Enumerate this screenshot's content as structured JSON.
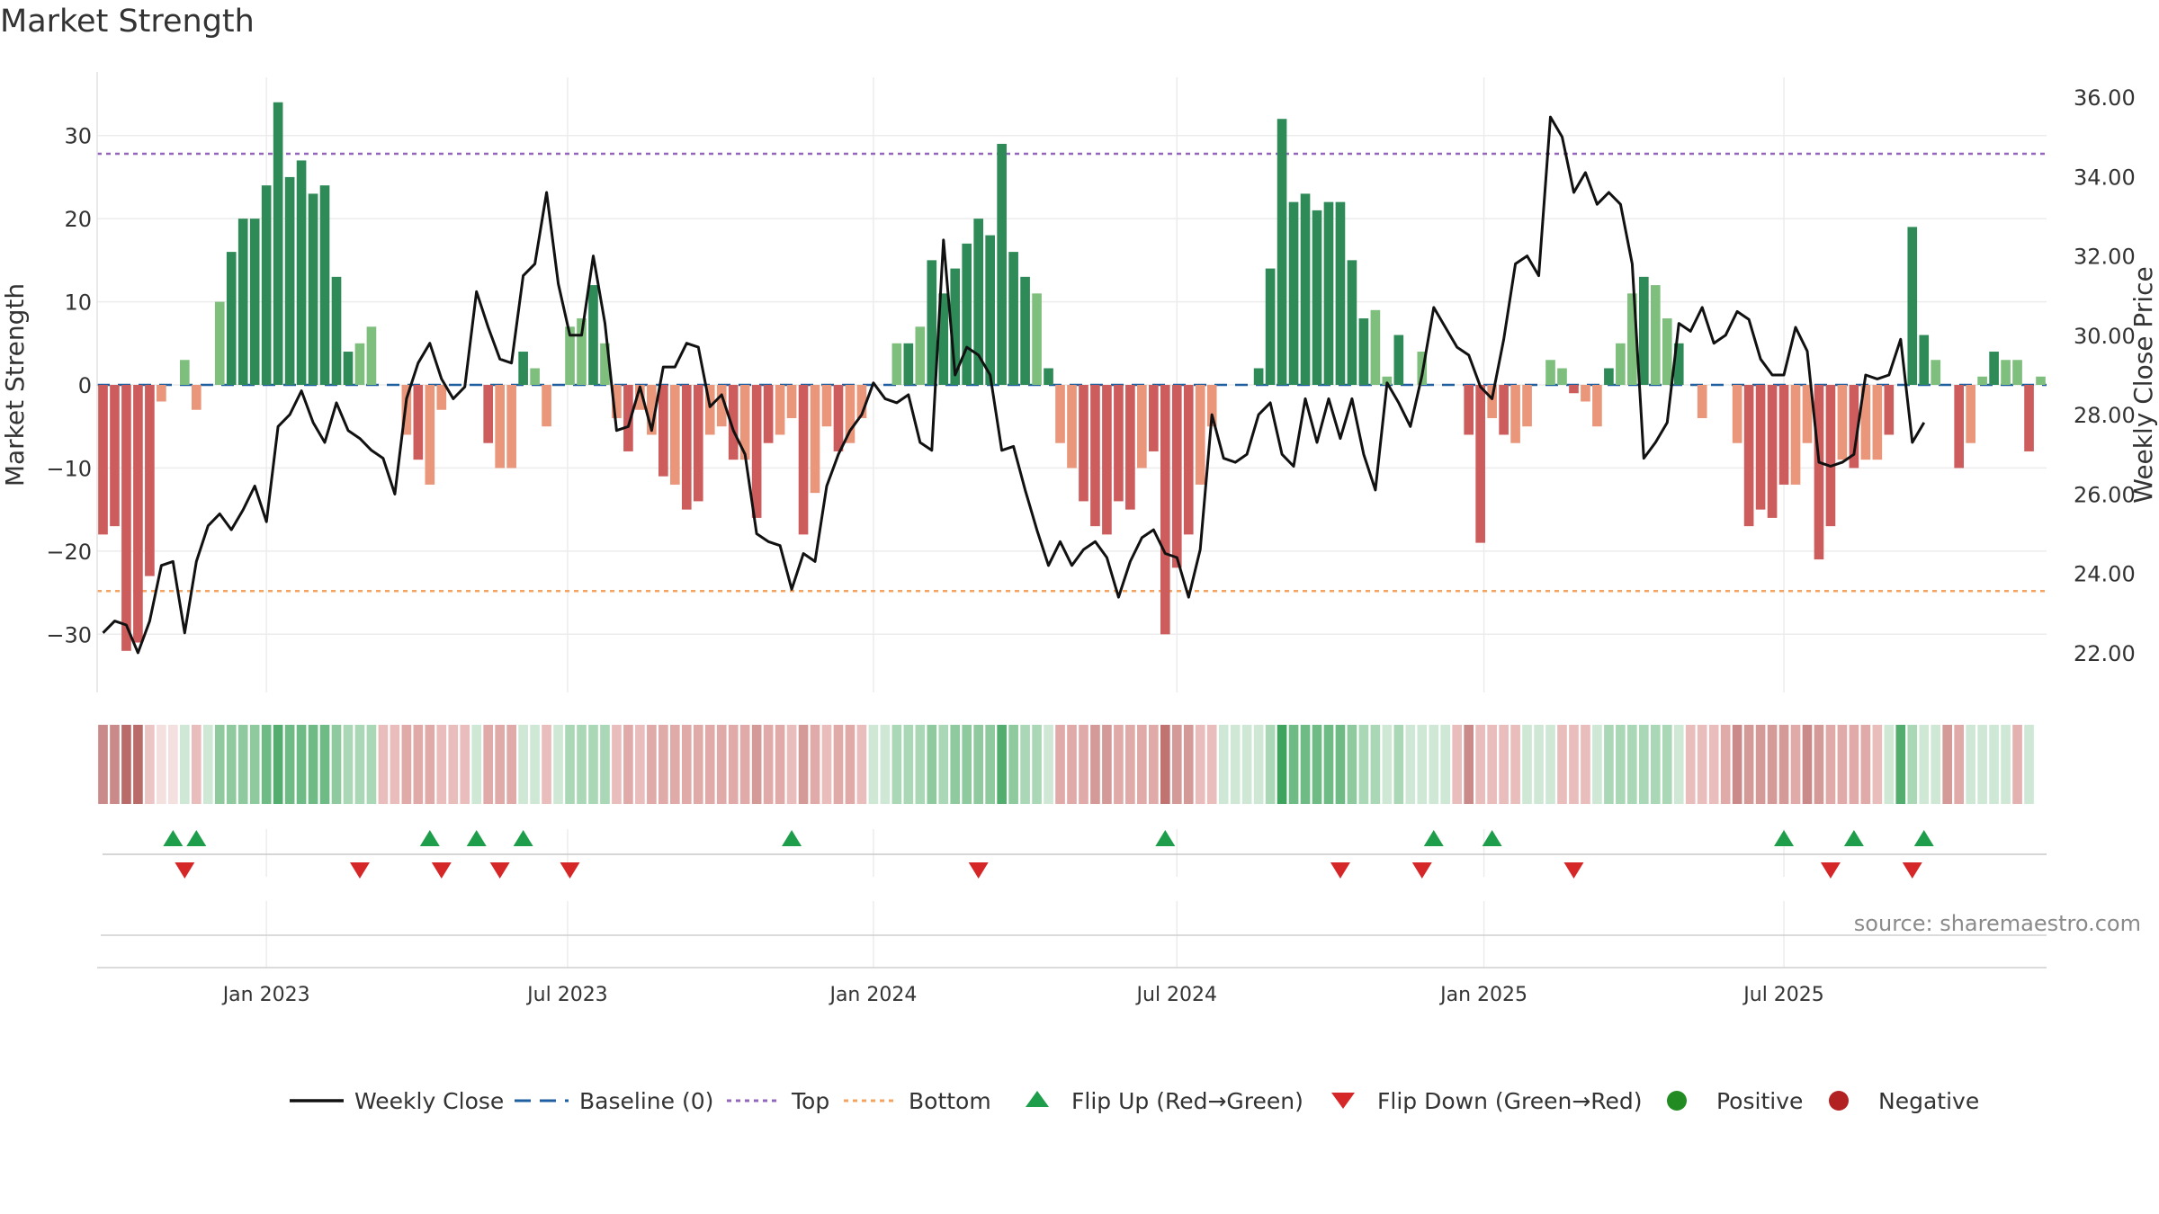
{
  "chart_data": {
    "type": "bar",
    "title": "Market Strength",
    "source": "source: sharemaestro.com",
    "ylabel_left": "Market Strength",
    "ylabel_right": "Weekly Close Price",
    "ylim_left": [
      -37,
      37
    ],
    "ylim_right": [
      21.0,
      36.5
    ],
    "yticks_left": [
      {
        "v": 30,
        "label": "30"
      },
      {
        "v": 20,
        "label": "20"
      },
      {
        "v": 10,
        "label": "10"
      },
      {
        "v": 0,
        "label": "0"
      },
      {
        "v": -10,
        "label": "−10"
      },
      {
        "v": -20,
        "label": "−20"
      },
      {
        "v": -30,
        "label": "−30"
      }
    ],
    "yticks_right": [
      {
        "v": 36,
        "label": "36.00"
      },
      {
        "v": 34,
        "label": "34.00"
      },
      {
        "v": 32,
        "label": "32.00"
      },
      {
        "v": 30,
        "label": "30.00"
      },
      {
        "v": 28,
        "label": "28.00"
      },
      {
        "v": 26,
        "label": "26.00"
      },
      {
        "v": 24,
        "label": "24.00"
      },
      {
        "v": 22,
        "label": "22.00"
      }
    ],
    "xticks": [
      {
        "week": 14.5,
        "label": "Jan 2023"
      },
      {
        "week": 40.3,
        "label": "Jul 2023"
      },
      {
        "week": 66.5,
        "label": "Jan 2024"
      },
      {
        "week": 92.5,
        "label": "Jul 2024"
      },
      {
        "week": 118.8,
        "label": "Jan 2025"
      },
      {
        "week": 144.5,
        "label": "Jul 2025"
      }
    ],
    "top_line": 27.8,
    "bottom_line": -24.8,
    "baseline": 0,
    "strength": [
      -18,
      -17,
      -32,
      -31,
      -23,
      -2,
      0,
      3,
      -3,
      0,
      10,
      16,
      20,
      20,
      24,
      34,
      25,
      27,
      23,
      24,
      13,
      4,
      5,
      7,
      0,
      0,
      -6,
      -9,
      -12,
      -3,
      0,
      0,
      0,
      -7,
      -10,
      -10,
      4,
      2,
      -5,
      0,
      7,
      8,
      12,
      5,
      -4,
      -8,
      -3,
      -6,
      -11,
      -12,
      -15,
      -14,
      -6,
      -5,
      -9,
      -9,
      -16,
      -7,
      -6,
      -4,
      -18,
      -13,
      -5,
      -8,
      -7,
      -4,
      0,
      0,
      5,
      5,
      7,
      15,
      11,
      14,
      17,
      20,
      18,
      29,
      16,
      13,
      11,
      2,
      -7,
      -10,
      -14,
      -17,
      -18,
      -14,
      -15,
      -10,
      -8,
      -30,
      -22,
      -18,
      -12,
      -5,
      0,
      0,
      0,
      2,
      14,
      32,
      22,
      23,
      21,
      22,
      22,
      15,
      8,
      9,
      1,
      6,
      0,
      4,
      0,
      0,
      0,
      -6,
      -19,
      -4,
      -6,
      -7,
      -5,
      0,
      3,
      2,
      -1,
      -2,
      -5,
      2,
      5,
      11,
      13,
      12,
      8,
      5,
      0,
      -4,
      0,
      0,
      -7,
      -17,
      -15,
      -16,
      -12,
      -12,
      -7,
      -21,
      -17,
      -9,
      -10,
      -9,
      -9,
      -6,
      0,
      19,
      6,
      3,
      0,
      -10,
      -7,
      1,
      4,
      3,
      3,
      -8,
      1
    ],
    "weekly_close": [
      22.5,
      22.8,
      22.7,
      22.0,
      22.8,
      24.2,
      24.3,
      22.5,
      24.3,
      25.2,
      25.5,
      25.1,
      25.6,
      26.2,
      25.3,
      27.7,
      28.0,
      28.6,
      27.8,
      27.3,
      28.3,
      27.6,
      27.4,
      27.1,
      26.9,
      26.0,
      28.4,
      29.3,
      29.8,
      28.9,
      28.4,
      28.7,
      31.1,
      30.2,
      29.4,
      29.3,
      31.5,
      31.8,
      33.6,
      31.3,
      30.0,
      30.0,
      32.0,
      30.3,
      27.6,
      27.7,
      28.7,
      27.6,
      29.2,
      29.2,
      29.8,
      29.7,
      28.2,
      28.5,
      27.6,
      27.0,
      25.0,
      24.8,
      24.7,
      23.6,
      24.5,
      24.3,
      26.2,
      27.0,
      27.6,
      28.0,
      28.8,
      28.4,
      28.3,
      28.5,
      27.3,
      27.1,
      32.4,
      29.0,
      29.7,
      29.5,
      29.0,
      27.1,
      27.2,
      26.1,
      25.1,
      24.2,
      24.8,
      24.2,
      24.6,
      24.8,
      24.4,
      23.4,
      24.3,
      24.9,
      25.1,
      24.5,
      24.4,
      23.4,
      24.6,
      28.0,
      26.9,
      26.8,
      27.0,
      28.0,
      28.3,
      27.0,
      26.7,
      28.4,
      27.3,
      28.4,
      27.4,
      28.4,
      27.0,
      26.1,
      28.8,
      28.3,
      27.7,
      29.0,
      30.7,
      30.2,
      29.7,
      29.5,
      28.7,
      28.4,
      29.9,
      31.8,
      32.0,
      31.5,
      35.5,
      35.0,
      33.6,
      34.1,
      33.3,
      33.6,
      33.3,
      31.8,
      26.9,
      27.3,
      27.8,
      30.3,
      30.1,
      30.7,
      29.8,
      30.0,
      30.6,
      30.4,
      29.4,
      29.0,
      29.0,
      30.2,
      29.6,
      26.8,
      26.7,
      26.8,
      27.0,
      29.0,
      28.9,
      29.0,
      29.9,
      27.3,
      27.8
    ],
    "ribbon_colors": [
      "#c98a89",
      "#c98a89",
      "#b96b6a",
      "#b96b6a",
      "#ebc6c5",
      "#f3e0df",
      "#f3e0df",
      "#cfe8d6",
      "#e9bdbc",
      "#cfe8d6",
      "#8fca9f",
      "#8fca9f",
      "#8fca9f",
      "#8fca9f",
      "#6fbb85",
      "#52ad6e",
      "#6fbb85",
      "#6fbb85",
      "#6fbb85",
      "#6fbb85",
      "#8fca9f",
      "#aad8b6",
      "#aad8b6",
      "#aad8b6",
      "#e9bdbc",
      "#e9bdbc",
      "#dfaaa8",
      "#dfaaa8",
      "#dfaaa8",
      "#e9bdbc",
      "#e9bdbc",
      "#e9bdbc",
      "#cfe8d6",
      "#dfaaa8",
      "#dfaaa8",
      "#dfaaa8",
      "#cfe8d6",
      "#cfe8d6",
      "#e9bdbc",
      "#cfe8d6",
      "#aad8b6",
      "#aad8b6",
      "#aad8b6",
      "#aad8b6",
      "#e9bdbc",
      "#dfaaa8",
      "#e9bdbc",
      "#dfaaa8",
      "#dfaaa8",
      "#dfaaa8",
      "#dfaaa8",
      "#dfaaa8",
      "#dfaaa8",
      "#dfaaa8",
      "#dfaaa8",
      "#dfaaa8",
      "#d49a98",
      "#dfaaa8",
      "#dfaaa8",
      "#e9bdbc",
      "#d49a98",
      "#dfaaa8",
      "#e9bdbc",
      "#dfaaa8",
      "#dfaaa8",
      "#e9bdbc",
      "#cfe8d6",
      "#cfe8d6",
      "#aad8b6",
      "#aad8b6",
      "#aad8b6",
      "#8fca9f",
      "#aad8b6",
      "#8fca9f",
      "#8fca9f",
      "#8fca9f",
      "#8fca9f",
      "#52ad6e",
      "#8fca9f",
      "#aad8b6",
      "#aad8b6",
      "#cfe8d6",
      "#dfaaa8",
      "#dfaaa8",
      "#dfaaa8",
      "#d49a98",
      "#d49a98",
      "#dfaaa8",
      "#dfaaa8",
      "#dfaaa8",
      "#dfaaa8",
      "#c07370",
      "#d49a98",
      "#d49a98",
      "#e9bdbc",
      "#e9bdbc",
      "#cfe8d6",
      "#cfe8d6",
      "#cfe8d6",
      "#cfe8d6",
      "#aad8b6",
      "#3ea45d",
      "#6fbb85",
      "#6fbb85",
      "#6fbb85",
      "#6fbb85",
      "#6fbb85",
      "#8fca9f",
      "#aad8b6",
      "#aad8b6",
      "#cfe8d6",
      "#aad8b6",
      "#cfe8d6",
      "#cfe8d6",
      "#cfe8d6",
      "#cfe8d6",
      "#e9bdbc",
      "#c98a89",
      "#e9bdbc",
      "#e9bdbc",
      "#e9bdbc",
      "#e9bdbc",
      "#cfe8d6",
      "#cfe8d6",
      "#cfe8d6",
      "#e9bdbc",
      "#e9bdbc",
      "#e9bdbc",
      "#cfe8d6",
      "#aad8b6",
      "#aad8b6",
      "#aad8b6",
      "#aad8b6",
      "#aad8b6",
      "#aad8b6",
      "#cfe8d6",
      "#e9bdbc",
      "#e9bdbc",
      "#e9bdbc",
      "#dfaaa8",
      "#c98a89",
      "#d49a98",
      "#d49a98",
      "#d49a98",
      "#d49a98",
      "#dfaaa8",
      "#c98a89",
      "#d49a98",
      "#dfaaa8",
      "#dfaaa8",
      "#dfaaa8",
      "#dfaaa8",
      "#e9bdbc",
      "#cfe8d6",
      "#52ad6e",
      "#aad8b6",
      "#cfe8d6",
      "#cfe8d6",
      "#d49a98",
      "#dfaaa8",
      "#cfe8d6",
      "#cfe8d6",
      "#cfe8d6",
      "#cfe8d6",
      "#e3b1b0",
      "#cfe8d6"
    ],
    "flips_up": [
      6,
      8,
      28,
      32,
      36,
      59,
      91,
      114,
      119,
      144,
      150,
      156
    ],
    "flips_down": [
      7,
      22,
      29,
      34,
      40,
      75,
      106,
      113,
      126,
      148,
      155
    ],
    "legend": [
      {
        "key": "weekly_close",
        "label": "Weekly Close",
        "color": "#111111"
      },
      {
        "key": "baseline",
        "label": "Baseline (0)",
        "color": "#1f5fa0"
      },
      {
        "key": "top",
        "label": "Top",
        "color": "#9467bd"
      },
      {
        "key": "bottom",
        "label": "Bottom",
        "color": "#f4a460"
      },
      {
        "key": "flip_up",
        "label": "Flip Up (Red→Green)",
        "color": "#1e9e4b"
      },
      {
        "key": "flip_down",
        "label": "Flip Down (Green→Red)",
        "color": "#d62728"
      },
      {
        "key": "positive",
        "label": "Positive",
        "color": "#228b22"
      },
      {
        "key": "negative",
        "label": "Negative",
        "color": "#b22222"
      }
    ],
    "colors": {
      "pos_dark": "#2e8b57",
      "pos_light": "#7ebf7e",
      "neg_dark": "#cd5c5c",
      "neg_light": "#e9967a",
      "line": "#111111",
      "baseline": "#1f5fa0",
      "top": "#9467bd",
      "bottom": "#f4a460",
      "flip_up": "#1e9e4b",
      "flip_down": "#d62728",
      "grid": "#ececec",
      "axis_text": "#333333"
    }
  }
}
